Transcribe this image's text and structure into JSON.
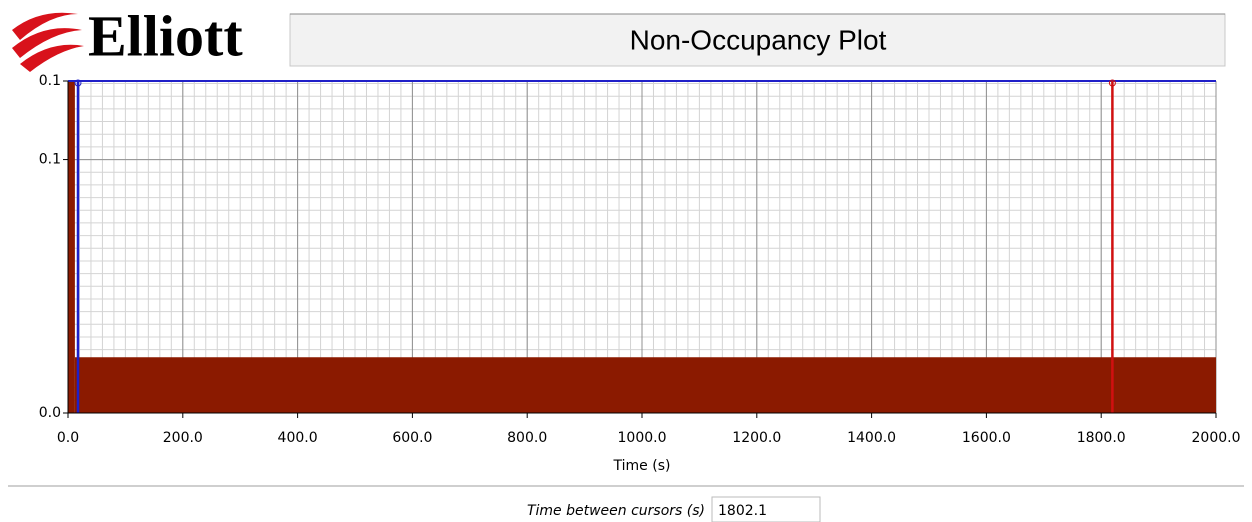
{
  "logo": "Elliott",
  "chart_data": {
    "type": "histogram",
    "title": "Non-Occupancy Plot",
    "xlabel": "Time (s)",
    "bins": [
      0,
      12,
      2000
    ],
    "values": [
      0.131,
      0.022
    ],
    "color": "#8b1a00",
    "xlim": [
      0,
      2000
    ],
    "xticks": [
      {
        "value": 0,
        "label": "0.0"
      },
      {
        "value": 200,
        "label": "200.0"
      },
      {
        "value": 400,
        "label": "400.0"
      },
      {
        "value": 600,
        "label": "600.0"
      },
      {
        "value": 800,
        "label": "800.0"
      },
      {
        "value": 1000,
        "label": "1000.0"
      },
      {
        "value": 1200,
        "label": "1200.0"
      },
      {
        "value": 1400,
        "label": "1400.0"
      },
      {
        "value": 1600,
        "label": "1600.0"
      },
      {
        "value": 1800,
        "label": "1800.0"
      },
      {
        "value": 2000,
        "label": "2000.0"
      }
    ],
    "ylim": [
      0,
      0.131
    ],
    "yticks": [
      {
        "value": 0,
        "label": "0.0"
      },
      0.1,
      {
        "value": 0.131,
        "label": "0.1"
      }
    ],
    "grid": true,
    "xminor_step": 20,
    "yminor_step": 0.005,
    "cursors": [
      {
        "x": 17.4,
        "color": "#1f1fc8"
      },
      {
        "x": 1819.5,
        "color": "#d01010"
      }
    ]
  },
  "readout": {
    "label": "Time between cursors (s)",
    "value": "1802.1"
  }
}
